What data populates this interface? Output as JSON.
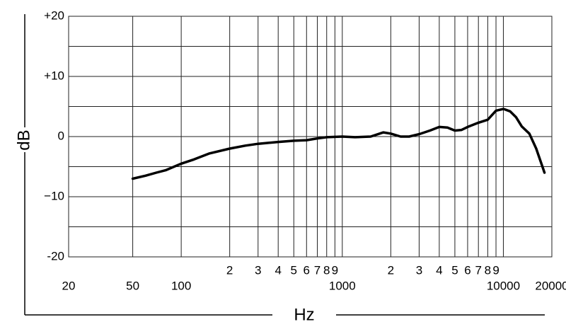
{
  "chart_data": {
    "type": "line",
    "x_label": "Hz",
    "y_label": "dB",
    "log_x": true,
    "xlim": [
      20,
      20000
    ],
    "ylim": [
      -20,
      20
    ],
    "xticks": [
      20,
      50,
      100,
      1000,
      10000,
      20000
    ],
    "x_minor_ticks": [
      {
        "value": 200,
        "label": "2"
      },
      {
        "value": 300,
        "label": "3"
      },
      {
        "value": 400,
        "label": "4"
      },
      {
        "value": 500,
        "label": "5"
      },
      {
        "value": 600,
        "label": "6"
      },
      {
        "value": 700,
        "label": "7"
      },
      {
        "value": 800,
        "label": "8"
      },
      {
        "value": 900,
        "label": "9"
      },
      {
        "value": 2000,
        "label": "2"
      },
      {
        "value": 3000,
        "label": "3"
      },
      {
        "value": 4000,
        "label": "4"
      },
      {
        "value": 5000,
        "label": "5"
      },
      {
        "value": 6000,
        "label": "6"
      },
      {
        "value": 7000,
        "label": "7"
      },
      {
        "value": 8000,
        "label": "8"
      },
      {
        "value": 9000,
        "label": "9"
      }
    ],
    "yticks": [
      {
        "value": 20,
        "label": "+20"
      },
      {
        "value": 10,
        "label": "+10"
      },
      0,
      {
        "value": -10,
        "label": "−10"
      },
      {
        "value": -20,
        "label": "-20"
      }
    ],
    "y_minor_ticks": [
      15,
      5,
      -5,
      -15
    ],
    "grid": true,
    "series": [
      {
        "color": "#000000",
        "x": [
          50,
          60,
          70,
          80,
          100,
          120,
          150,
          200,
          250,
          300,
          400,
          500,
          600,
          700,
          800,
          1000,
          1200,
          1500,
          1800,
          2000,
          2300,
          2600,
          3000,
          3500,
          4000,
          4500,
          5000,
          5500,
          6000,
          7000,
          8000,
          9000,
          10000,
          11000,
          12000,
          13000,
          14500,
          16000,
          18000
        ],
        "values": [
          -7,
          -6.5,
          -6,
          -5.6,
          -4.5,
          -3.8,
          -2.8,
          -2,
          -1.5,
          -1.2,
          -0.9,
          -0.7,
          -0.6,
          -0.3,
          -0.1,
          0,
          -0.1,
          0,
          0.7,
          0.5,
          0,
          0,
          0.4,
          1,
          1.6,
          1.5,
          1,
          1.1,
          1.6,
          2.3,
          2.8,
          4.3,
          4.6,
          4.2,
          3.2,
          1.7,
          0.5,
          -2,
          -6
        ]
      }
    ]
  }
}
